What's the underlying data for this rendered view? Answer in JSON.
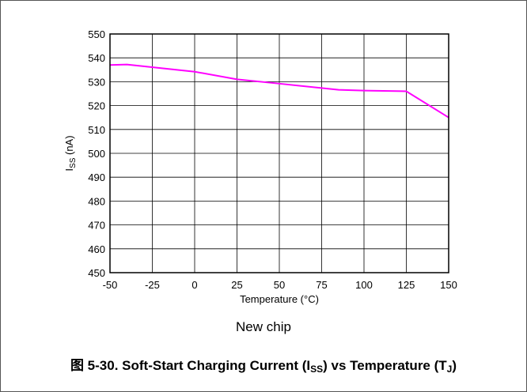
{
  "chart_data": {
    "type": "line",
    "x": [
      -50,
      -40,
      0,
      25,
      50,
      85,
      100,
      125,
      150
    ],
    "series": [
      {
        "values": [
          537,
          537.2,
          534.2,
          531,
          529.2,
          526.6,
          526.3,
          526,
          515
        ],
        "color": "#ff00ff"
      }
    ],
    "xlabel": "Temperature (°C)",
    "ylabel": {
      "prefix": "I",
      "sub": "SS",
      "suffix": " (nA)"
    },
    "xlim": [
      -50,
      150
    ],
    "ylim": [
      450,
      550
    ],
    "xticks": [
      -50,
      -25,
      0,
      25,
      50,
      75,
      100,
      125,
      150
    ],
    "yticks": [
      450,
      460,
      470,
      480,
      490,
      500,
      510,
      520,
      530,
      540,
      550
    ],
    "grid": true,
    "caption": "New chip"
  },
  "figure_title": {
    "prefix": "图 5-30. Soft-Start Charging Current (I",
    "sub1": "SS",
    "middle": ") vs Temperature (T",
    "sub2": "J",
    "suffix": ")"
  }
}
